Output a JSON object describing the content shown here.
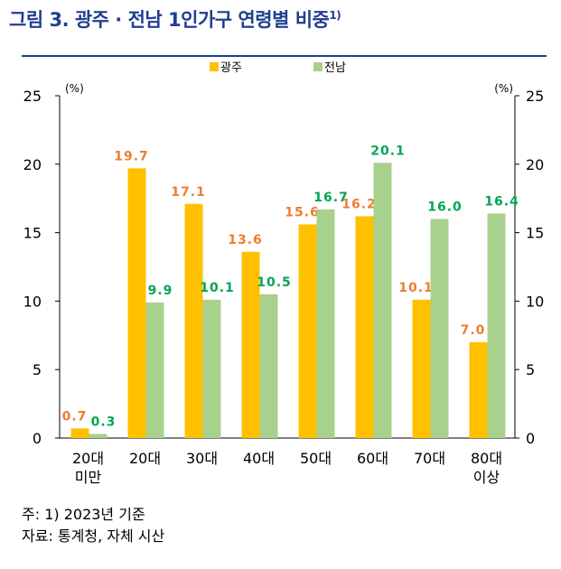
{
  "title": "그림 3. 광주 · 전남 1인가구 연령별 비중",
  "title_sup": "1)",
  "chart_data": {
    "type": "bar",
    "categories": [
      [
        "20대",
        "미만"
      ],
      [
        "20대"
      ],
      [
        "30대"
      ],
      [
        "40대"
      ],
      [
        "50대"
      ],
      [
        "60대"
      ],
      [
        "70대"
      ],
      [
        "80대",
        "이상"
      ]
    ],
    "series": [
      {
        "name": "광주",
        "color": "#ffc000",
        "label_color": "#ed7d31",
        "values": [
          0.7,
          19.7,
          17.1,
          13.6,
          15.6,
          16.2,
          10.1,
          7.0
        ]
      },
      {
        "name": "전남",
        "color": "#a9d18e",
        "label_color": "#00a651",
        "values": [
          0.3,
          9.9,
          10.1,
          10.5,
          16.7,
          20.1,
          16.0,
          16.4
        ]
      }
    ],
    "ylim": [
      0,
      25
    ],
    "yticks": [
      0,
      5,
      10,
      15,
      20,
      25
    ],
    "unit_left": "(%)",
    "unit_right": "(%)",
    "legend_position": "top-center",
    "grid": false
  },
  "notes": {
    "line1": "주: 1) 2023년 기준",
    "line2": "자료: 통계청, 자체 시산"
  }
}
